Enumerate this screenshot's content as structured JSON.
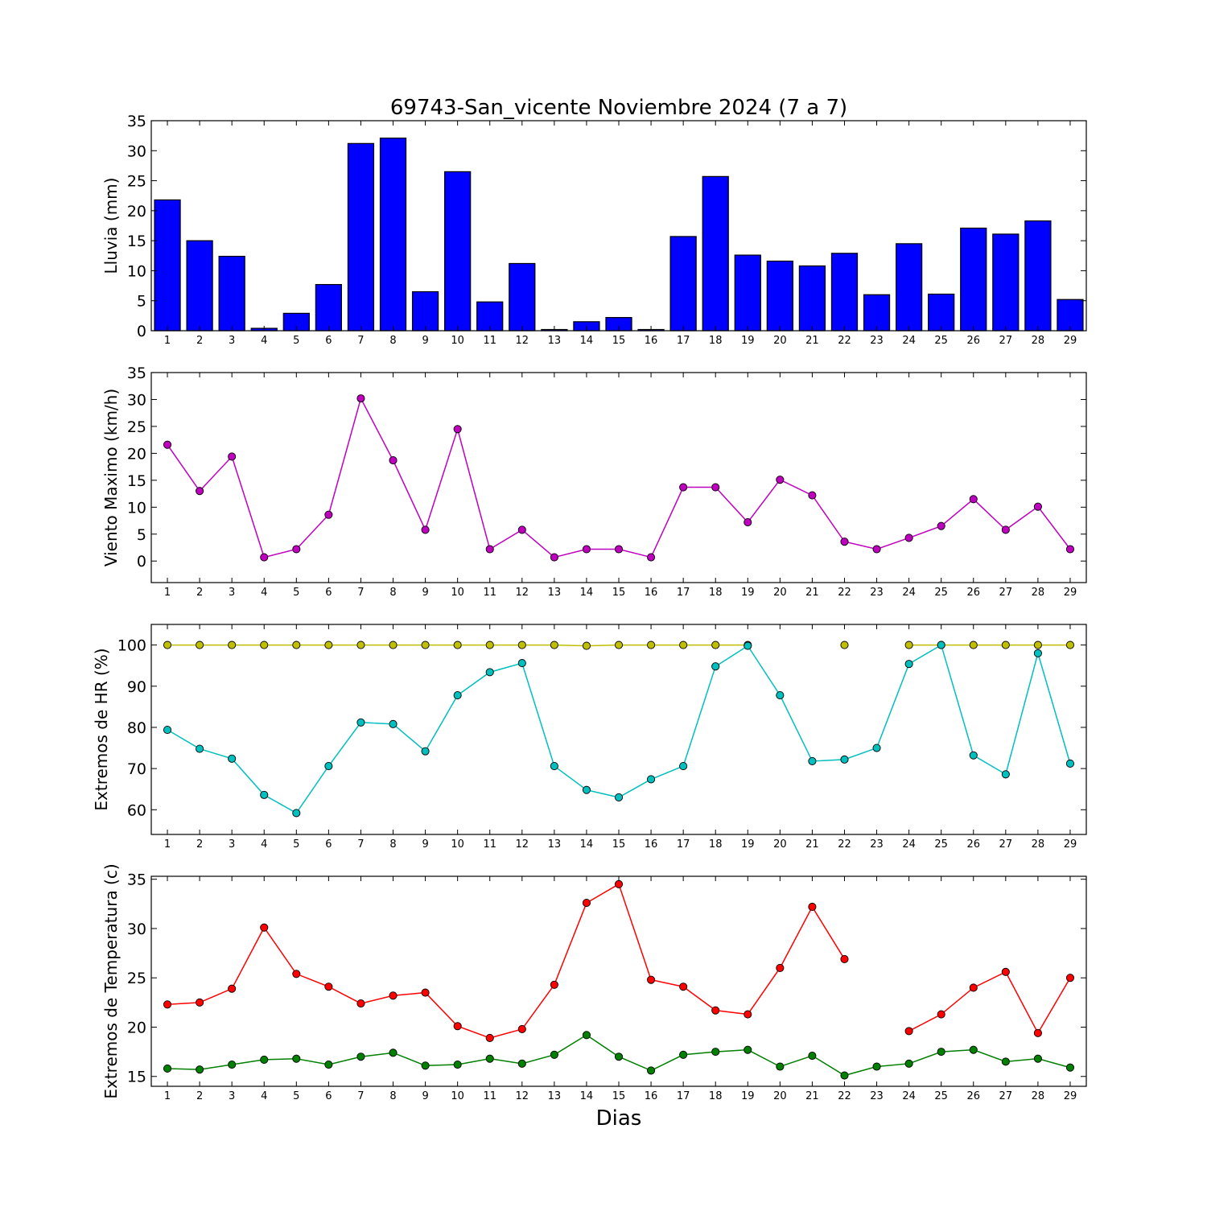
{
  "title": "69743-San_vicente Noviembre 2024  (7 a 7)",
  "xlabel": "Dias",
  "colors": {
    "rain": "#0000ff",
    "wind": "#bf00bf",
    "hr_max": "#bfbf00",
    "hr_min": "#00bfbf",
    "temp_max": "#ff0000",
    "temp_min": "#008000"
  },
  "chart_data": [
    {
      "type": "bar",
      "ylabel": "Lluvia (mm)",
      "ylim": [
        0,
        35
      ],
      "yticks": [
        0,
        5,
        10,
        15,
        20,
        25,
        30,
        35
      ],
      "x": [
        1,
        2,
        3,
        4,
        5,
        6,
        7,
        8,
        9,
        10,
        11,
        12,
        13,
        14,
        15,
        16,
        17,
        18,
        19,
        20,
        21,
        22,
        23,
        24,
        25,
        26,
        27,
        28,
        29
      ],
      "series": [
        {
          "color": "#0000ff",
          "values": [
            21.8,
            15.0,
            12.4,
            0.4,
            2.9,
            7.7,
            31.2,
            32.1,
            6.5,
            26.5,
            4.8,
            11.2,
            0.2,
            1.5,
            2.2,
            0.2,
            15.7,
            25.7,
            12.6,
            11.6,
            10.8,
            12.9,
            6.0,
            14.5,
            6.1,
            17.1,
            16.1,
            18.3,
            5.2
          ]
        }
      ]
    },
    {
      "type": "line",
      "ylabel": "Viento Maximo (km/h)",
      "ylim": [
        -4,
        35
      ],
      "yticks": [
        0,
        5,
        10,
        15,
        20,
        25,
        30,
        35
      ],
      "x": [
        1,
        2,
        3,
        4,
        5,
        6,
        7,
        8,
        9,
        10,
        11,
        12,
        13,
        14,
        15,
        16,
        17,
        18,
        19,
        20,
        21,
        22,
        23,
        24,
        25,
        26,
        27,
        28,
        29
      ],
      "series": [
        {
          "color": "#bf00bf",
          "values": [
            21.6,
            13.0,
            19.4,
            0.7,
            2.2,
            8.6,
            30.2,
            18.7,
            5.8,
            24.5,
            2.2,
            5.8,
            0.7,
            2.2,
            2.2,
            0.7,
            13.7,
            13.7,
            7.2,
            15.1,
            12.2,
            3.6,
            2.2,
            4.3,
            6.5,
            11.5,
            5.8,
            10.1,
            2.2
          ]
        }
      ]
    },
    {
      "type": "line",
      "ylabel": "Extremos de HR (%)",
      "ylim": [
        54,
        105
      ],
      "yticks": [
        60,
        70,
        80,
        90,
        100
      ],
      "x": [
        1,
        2,
        3,
        4,
        5,
        6,
        7,
        8,
        9,
        10,
        11,
        12,
        13,
        14,
        15,
        16,
        17,
        18,
        19,
        20,
        21,
        22,
        23,
        24,
        25,
        26,
        27,
        28,
        29
      ],
      "series": [
        {
          "color": "#bfbf00",
          "values": [
            100,
            100,
            100,
            100,
            100,
            100,
            100,
            100,
            100,
            100,
            100,
            100,
            100,
            99.8,
            100,
            100,
            100,
            100,
            100,
            null,
            null,
            100,
            null,
            100,
            100,
            100,
            100,
            100,
            100
          ]
        },
        {
          "color": "#00bfbf",
          "values": [
            79.4,
            74.8,
            72.4,
            63.6,
            59.2,
            70.6,
            81.2,
            80.8,
            74.2,
            87.8,
            93.4,
            95.6,
            70.6,
            64.8,
            63.0,
            67.4,
            70.6,
            94.8,
            99.8,
            87.8,
            71.8,
            72.2,
            75.0,
            95.4,
            100.0,
            73.2,
            68.6,
            98.0,
            71.2
          ]
        }
      ]
    },
    {
      "type": "line",
      "ylabel": "Extremos de Temperatura (c)",
      "ylim": [
        14.0,
        35.3
      ],
      "yticks": [
        15,
        20,
        25,
        30,
        35
      ],
      "x": [
        1,
        2,
        3,
        4,
        5,
        6,
        7,
        8,
        9,
        10,
        11,
        12,
        13,
        14,
        15,
        16,
        17,
        18,
        19,
        20,
        21,
        22,
        23,
        24,
        25,
        26,
        27,
        28,
        29
      ],
      "series": [
        {
          "color": "#ff0000",
          "values": [
            22.3,
            22.5,
            23.9,
            30.1,
            25.4,
            24.1,
            22.4,
            23.2,
            23.5,
            20.1,
            18.9,
            19.8,
            24.3,
            32.6,
            34.5,
            24.8,
            24.1,
            21.7,
            21.3,
            26.0,
            32.2,
            26.9,
            null,
            19.6,
            21.3,
            24.0,
            25.6,
            19.4,
            25.0
          ]
        },
        {
          "color": "#008000",
          "values": [
            15.8,
            15.7,
            16.2,
            16.7,
            16.8,
            16.2,
            17.0,
            17.4,
            16.1,
            16.2,
            16.8,
            16.3,
            17.2,
            19.2,
            17.0,
            15.6,
            17.2,
            17.5,
            17.7,
            16.0,
            17.1,
            15.1,
            16.0,
            16.3,
            17.5,
            17.7,
            16.5,
            16.8,
            15.9
          ]
        }
      ]
    }
  ]
}
